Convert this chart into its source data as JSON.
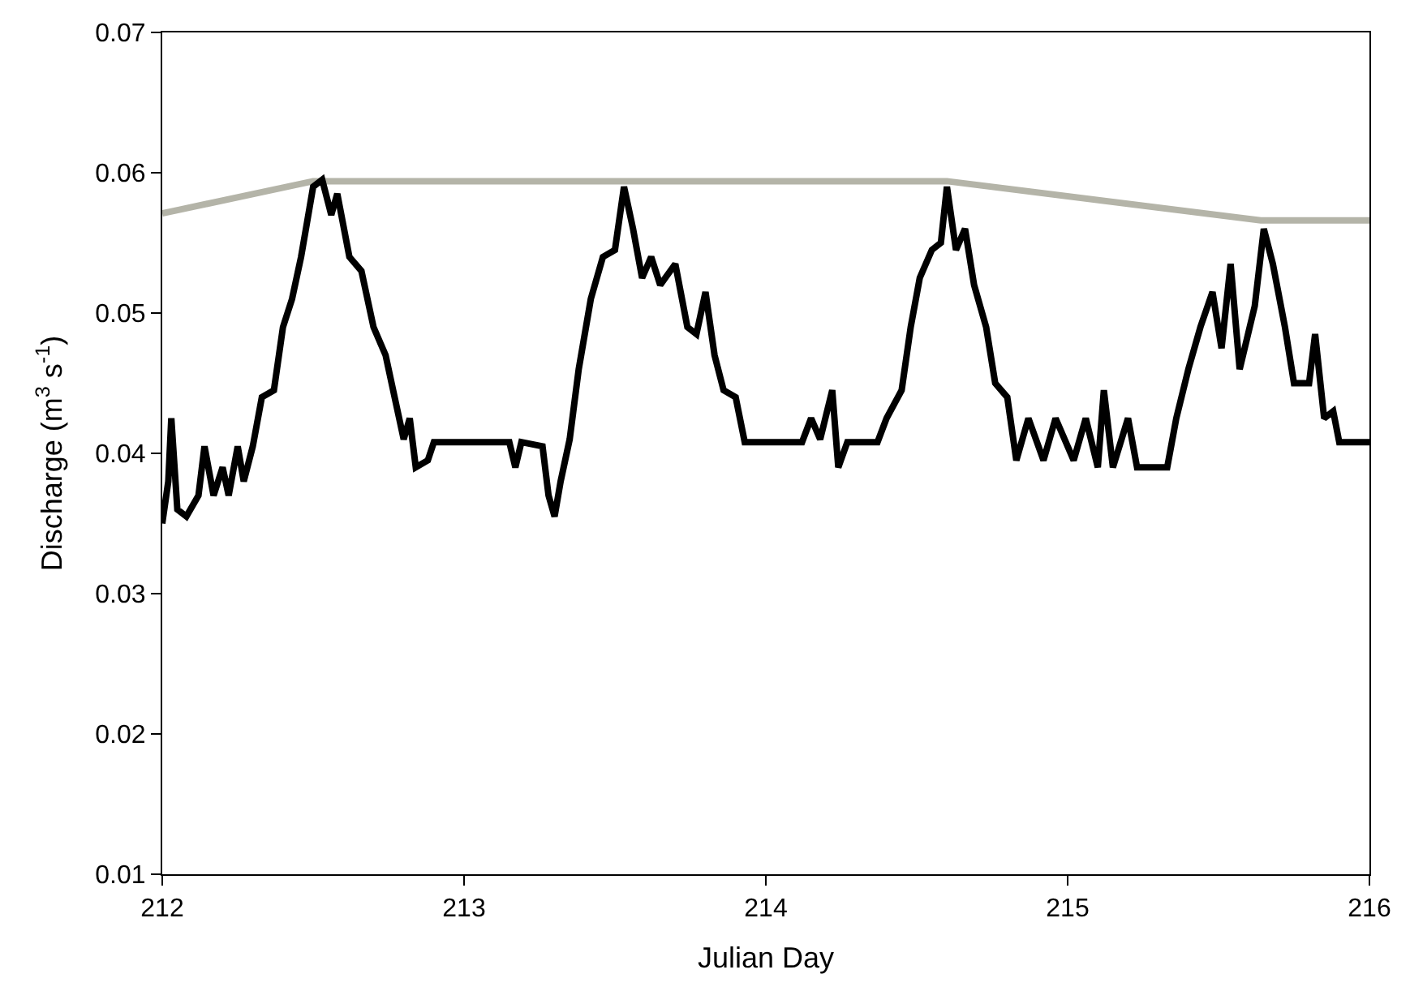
{
  "chart_data": {
    "type": "line",
    "xlabel": "Julian Day",
    "ylabel": "Discharge (m$^{3}$ s$^{-1}$)",
    "xlim": [
      212,
      216
    ],
    "xticks": [
      212,
      213,
      214,
      215,
      216
    ],
    "ylim": [
      0.01,
      0.07
    ],
    "yticks": [
      0.01,
      0.02,
      0.03,
      0.04,
      0.05,
      0.06,
      0.07
    ],
    "marker": "none",
    "line_style": "solid",
    "series": [
      {
        "color": "#b4b4a8",
        "x": [
          212,
          212.5,
          214.6,
          215.64,
          216
        ],
        "values": [
          0.0571,
          0.0594,
          0.0594,
          0.0566,
          0.0566
        ]
      },
      {
        "color": "#000000",
        "x": [
          212.0,
          212.02,
          212.03,
          212.05,
          212.08,
          212.12,
          212.14,
          212.17,
          212.2,
          212.22,
          212.25,
          212.27,
          212.3,
          212.33,
          212.37,
          212.4,
          212.43,
          212.46,
          212.48,
          212.5,
          212.53,
          212.56,
          212.58,
          212.62,
          212.66,
          212.7,
          212.74,
          212.77,
          212.8,
          212.82,
          212.84,
          212.88,
          212.9,
          213.15,
          213.17,
          213.19,
          213.26,
          213.28,
          213.3,
          213.32,
          213.35,
          213.38,
          213.42,
          213.46,
          213.5,
          213.53,
          213.56,
          213.59,
          213.62,
          213.65,
          213.7,
          213.74,
          213.77,
          213.8,
          213.83,
          213.86,
          213.9,
          213.93,
          214.12,
          214.15,
          214.18,
          214.22,
          214.24,
          214.27,
          214.37,
          214.4,
          214.45,
          214.48,
          214.51,
          214.55,
          214.58,
          214.6,
          214.63,
          214.66,
          214.69,
          214.73,
          214.76,
          214.8,
          214.83,
          214.87,
          214.92,
          214.96,
          215.02,
          215.06,
          215.1,
          215.12,
          215.15,
          215.2,
          215.23,
          215.33,
          215.36,
          215.4,
          215.44,
          215.48,
          215.51,
          215.54,
          215.57,
          215.62,
          215.65,
          215.68,
          215.72,
          215.75,
          215.8,
          215.82,
          215.85,
          215.88,
          215.9,
          216.0
        ],
        "values": [
          0.035,
          0.038,
          0.0425,
          0.036,
          0.0355,
          0.037,
          0.0405,
          0.037,
          0.039,
          0.037,
          0.0405,
          0.038,
          0.0405,
          0.044,
          0.0445,
          0.049,
          0.051,
          0.054,
          0.0565,
          0.059,
          0.0595,
          0.057,
          0.0585,
          0.054,
          0.053,
          0.049,
          0.047,
          0.044,
          0.041,
          0.0425,
          0.039,
          0.0395,
          0.0408,
          0.0408,
          0.039,
          0.0408,
          0.0405,
          0.037,
          0.0355,
          0.038,
          0.041,
          0.046,
          0.051,
          0.054,
          0.0545,
          0.059,
          0.056,
          0.0525,
          0.054,
          0.052,
          0.0535,
          0.049,
          0.0485,
          0.0515,
          0.047,
          0.0445,
          0.044,
          0.0408,
          0.0408,
          0.0425,
          0.041,
          0.0445,
          0.039,
          0.0408,
          0.0408,
          0.0425,
          0.0445,
          0.049,
          0.0525,
          0.0545,
          0.055,
          0.059,
          0.0545,
          0.056,
          0.052,
          0.049,
          0.045,
          0.044,
          0.0395,
          0.0425,
          0.0395,
          0.0425,
          0.0395,
          0.0425,
          0.039,
          0.0445,
          0.039,
          0.0425,
          0.039,
          0.039,
          0.0425,
          0.046,
          0.049,
          0.0515,
          0.0475,
          0.0535,
          0.046,
          0.0505,
          0.056,
          0.0535,
          0.049,
          0.045,
          0.045,
          0.0485,
          0.0425,
          0.043,
          0.0408,
          0.0408
        ]
      }
    ]
  }
}
